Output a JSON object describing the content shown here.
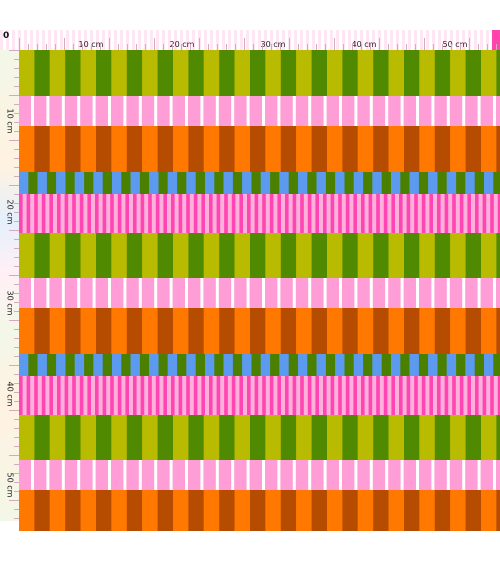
{
  "ruler": {
    "origin_label": "0",
    "unit": "cm",
    "top_labels": [
      "10 cm",
      "20 cm",
      "30 cm",
      "40 cm",
      "50 cm"
    ],
    "left_labels": [
      "10 cm",
      "20 cm",
      "30 cm",
      "40 cm",
      "50 cm"
    ]
  },
  "pattern": {
    "colors": {
      "olive": "#b9bb00",
      "green": "#508a00",
      "pink": "#ff9dd6",
      "orange": "#ff7800",
      "rust": "#b54c00",
      "blue": "#5c9af0",
      "dark_green": "#4a7f00",
      "magenta": "#ff45b2",
      "light_pink": "#ffb0dc",
      "white": "#ffffff"
    }
  }
}
